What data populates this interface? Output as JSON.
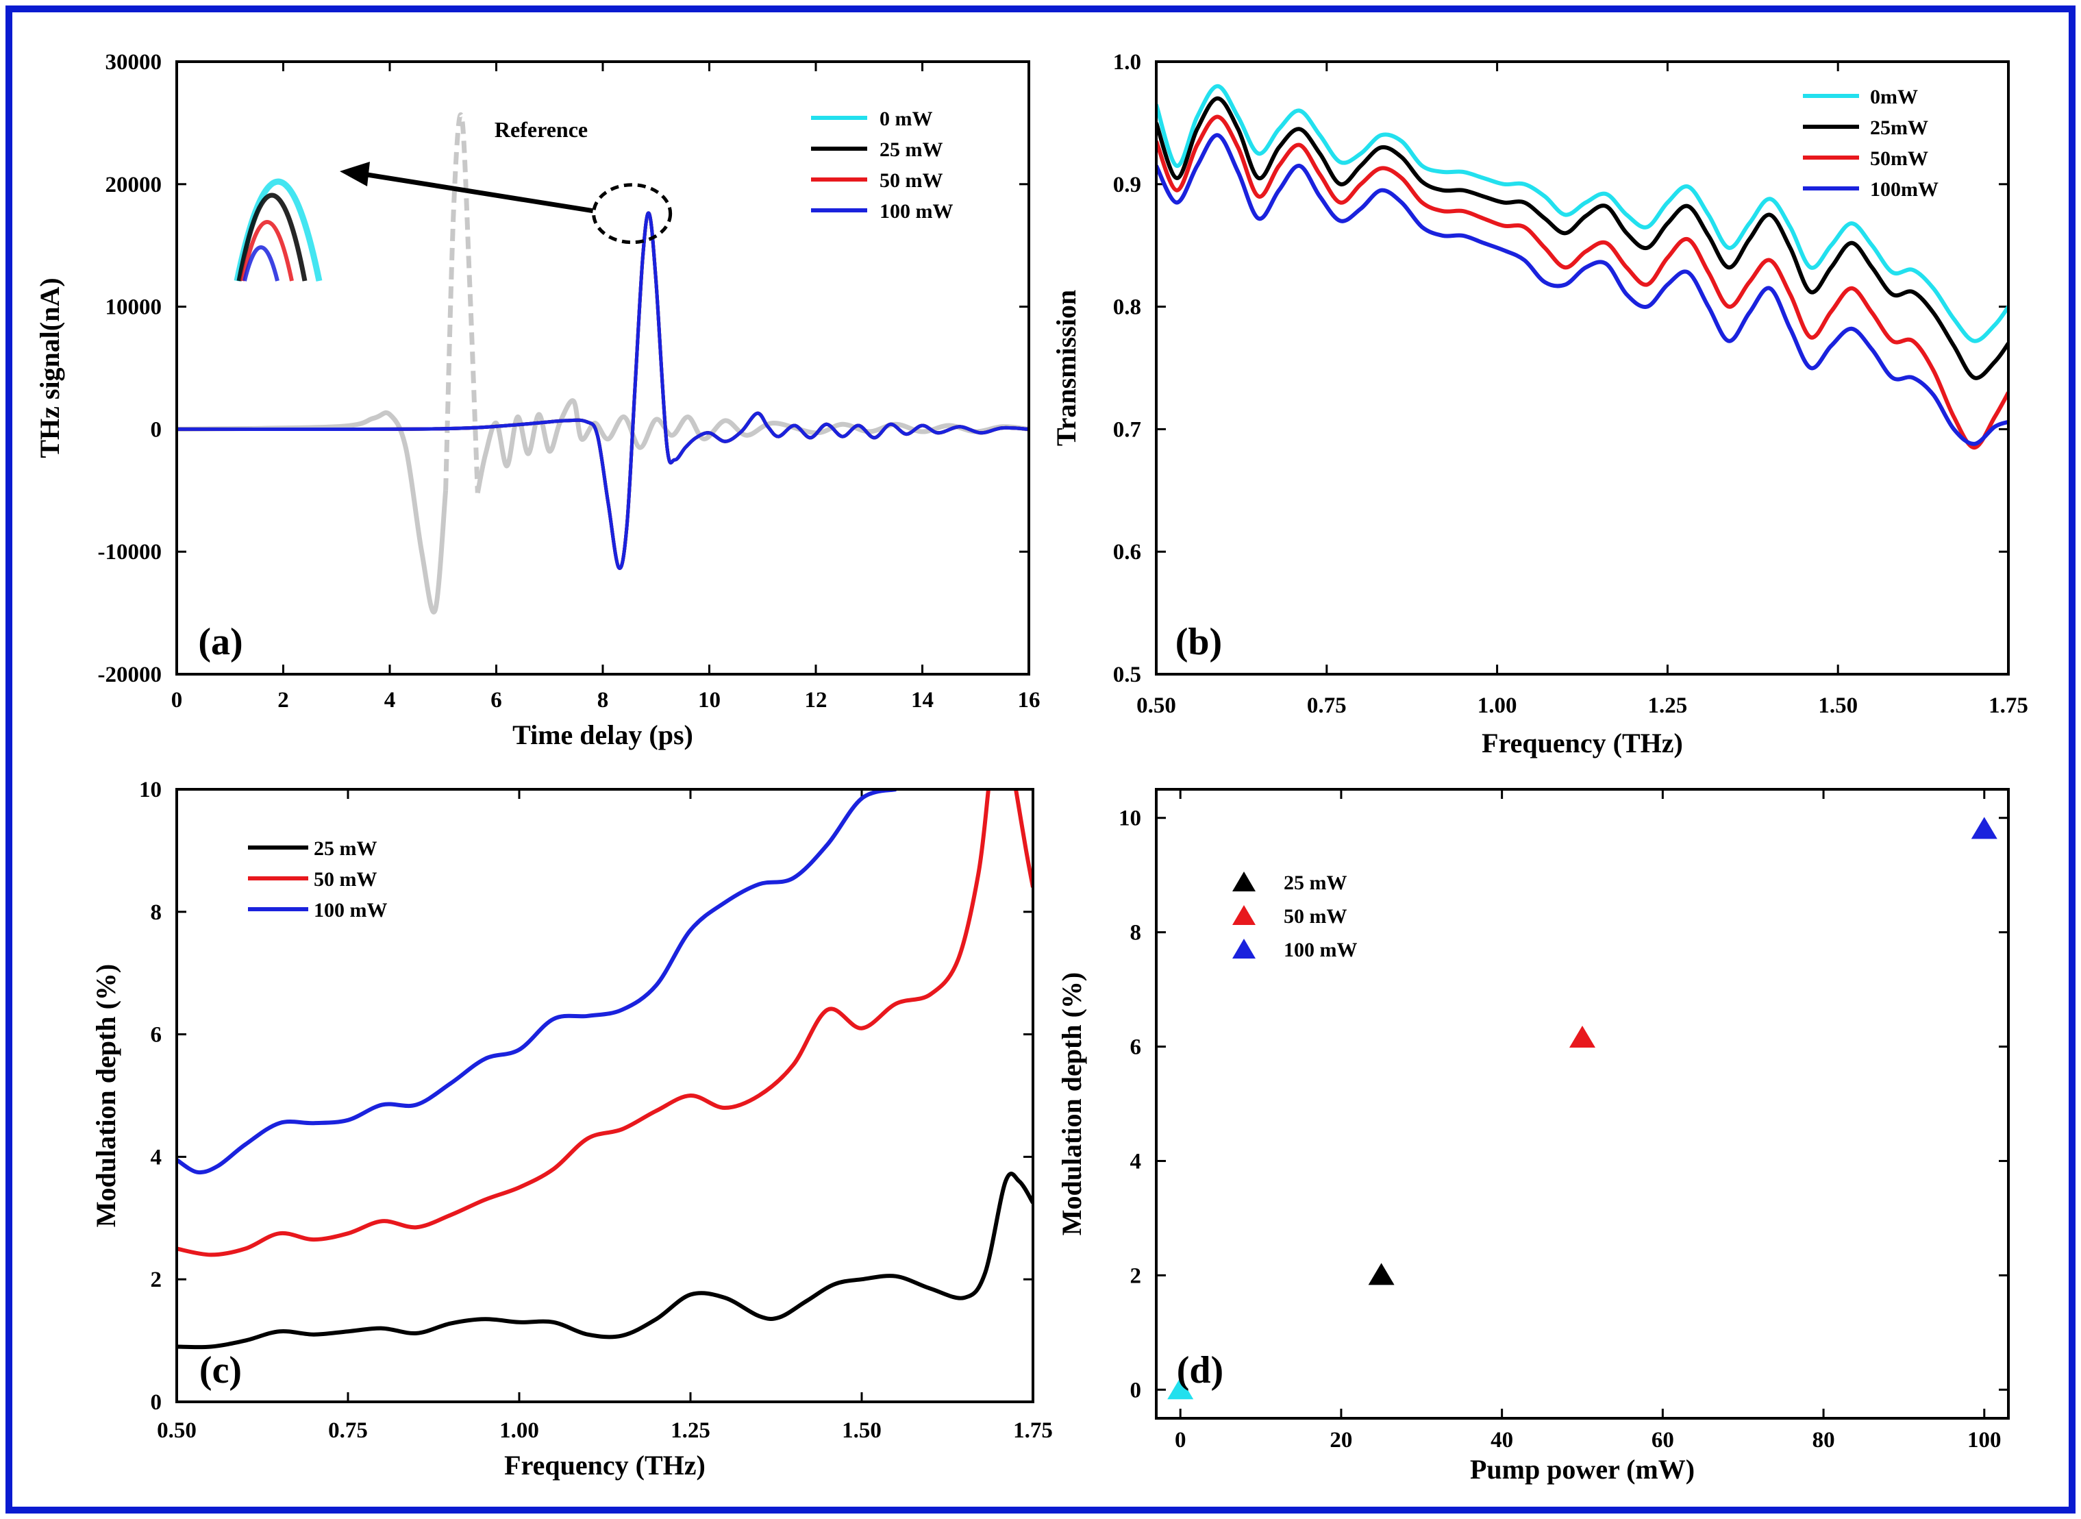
{
  "figure": {
    "border_color": "#0a1bd0"
  },
  "chart_data": [
    {
      "id": "a",
      "type": "line",
      "panel_label": "(a)",
      "xlabel": "Time delay (ps)",
      "ylabel": "THz signal(nA)",
      "xlim": [
        0,
        16
      ],
      "ylim": [
        -20000,
        30000
      ],
      "xticks": [
        0,
        2,
        4,
        6,
        8,
        10,
        12,
        14,
        16
      ],
      "yticks": [
        -20000,
        -10000,
        0,
        10000,
        20000,
        30000
      ],
      "legend": [
        "0 mW",
        "25 mW",
        "50 mW",
        "100 mW"
      ],
      "legend_colors": [
        "#22e0ee",
        "#000000",
        "#e8181d",
        "#1a22dd"
      ],
      "reference_label": "Reference",
      "reference_color": "#c8c8c8",
      "inset_zoom": {
        "description_colors": [
          "#22e0ee",
          "#000000",
          "#e8181d",
          "#1a22dd"
        ]
      },
      "reference_points": [
        [
          0,
          0
        ],
        [
          3.0,
          200
        ],
        [
          3.7,
          900
        ],
        [
          4.0,
          1200
        ],
        [
          4.3,
          -1500
        ],
        [
          4.6,
          -10000
        ],
        [
          4.85,
          -14800
        ],
        [
          5.05,
          -5000
        ],
        [
          5.2,
          18000
        ],
        [
          5.35,
          25500
        ],
        [
          5.5,
          12000
        ],
        [
          5.65,
          -5200
        ],
        [
          5.8,
          -2000
        ],
        [
          6.0,
          500
        ],
        [
          6.2,
          -3000
        ],
        [
          6.4,
          1000
        ],
        [
          6.6,
          -2000
        ],
        [
          6.8,
          1200
        ],
        [
          7.0,
          -1800
        ],
        [
          7.2,
          600
        ],
        [
          7.45,
          2300
        ],
        [
          7.6,
          -800
        ],
        [
          7.85,
          500
        ],
        [
          8.1,
          -800
        ],
        [
          8.4,
          1000
        ],
        [
          8.7,
          -1500
        ],
        [
          9.0,
          800
        ],
        [
          9.3,
          -500
        ],
        [
          9.6,
          1000
        ],
        [
          9.9,
          -800
        ],
        [
          10.3,
          700
        ],
        [
          10.7,
          -500
        ],
        [
          11.2,
          500
        ],
        [
          12.0,
          -300
        ],
        [
          12.5,
          400
        ],
        [
          13.0,
          -200
        ],
        [
          13.5,
          400
        ],
        [
          14.0,
          -200
        ],
        [
          14.5,
          300
        ],
        [
          15.0,
          -200
        ],
        [
          15.5,
          200
        ],
        [
          16.0,
          0
        ]
      ],
      "signal_points": [
        [
          0,
          0
        ],
        [
          4.0,
          0
        ],
        [
          5.5,
          100
        ],
        [
          6.5,
          400
        ],
        [
          7.3,
          700
        ],
        [
          7.7,
          600
        ],
        [
          7.9,
          -500
        ],
        [
          8.1,
          -6000
        ],
        [
          8.3,
          -11300
        ],
        [
          8.45,
          -8000
        ],
        [
          8.6,
          3000
        ],
        [
          8.75,
          14000
        ],
        [
          8.87,
          17600
        ],
        [
          9.0,
          12000
        ],
        [
          9.2,
          -1200
        ],
        [
          9.35,
          -2500
        ],
        [
          9.55,
          -1500
        ],
        [
          9.75,
          -700
        ],
        [
          10.0,
          -300
        ],
        [
          10.3,
          -1000
        ],
        [
          10.6,
          -200
        ],
        [
          10.9,
          1300
        ],
        [
          11.1,
          200
        ],
        [
          11.3,
          -600
        ],
        [
          11.6,
          300
        ],
        [
          11.9,
          -700
        ],
        [
          12.2,
          400
        ],
        [
          12.5,
          -600
        ],
        [
          12.8,
          300
        ],
        [
          13.1,
          -700
        ],
        [
          13.4,
          400
        ],
        [
          13.7,
          -400
        ],
        [
          14.0,
          300
        ],
        [
          14.3,
          -300
        ],
        [
          14.7,
          200
        ],
        [
          15.1,
          -300
        ],
        [
          15.5,
          100
        ],
        [
          16.0,
          0
        ]
      ]
    },
    {
      "id": "b",
      "type": "line",
      "panel_label": "(b)",
      "xlabel": "Frequency (THz)",
      "ylabel": "Transmission",
      "xlim": [
        0.5,
        1.75
      ],
      "ylim": [
        0.5,
        1.0
      ],
      "xticks": [
        0.5,
        0.75,
        1.0,
        1.25,
        1.5,
        1.75
      ],
      "xtick_labels": [
        "0.50",
        "0.75",
        "1.00",
        "1.25",
        "1.50",
        "1.75"
      ],
      "yticks": [
        0.5,
        0.6,
        0.7,
        0.8,
        0.9,
        1.0
      ],
      "ytick_labels": [
        "0.5",
        "0.6",
        "0.7",
        "0.8",
        "0.9",
        "1.0"
      ],
      "x": [
        0.5,
        0.53,
        0.56,
        0.59,
        0.62,
        0.65,
        0.68,
        0.71,
        0.74,
        0.77,
        0.8,
        0.83,
        0.86,
        0.89,
        0.92,
        0.95,
        0.98,
        1.01,
        1.04,
        1.07,
        1.1,
        1.13,
        1.16,
        1.19,
        1.22,
        1.25,
        1.28,
        1.31,
        1.34,
        1.37,
        1.4,
        1.43,
        1.46,
        1.49,
        1.52,
        1.55,
        1.58,
        1.61,
        1.64,
        1.67,
        1.7,
        1.73,
        1.75
      ],
      "series": [
        {
          "name": "0mW",
          "color": "#22e0ee",
          "values": [
            0.965,
            0.915,
            0.955,
            0.98,
            0.955,
            0.925,
            0.945,
            0.96,
            0.94,
            0.918,
            0.925,
            0.94,
            0.935,
            0.915,
            0.91,
            0.91,
            0.905,
            0.9,
            0.9,
            0.89,
            0.875,
            0.885,
            0.892,
            0.875,
            0.865,
            0.885,
            0.898,
            0.875,
            0.848,
            0.868,
            0.888,
            0.865,
            0.832,
            0.85,
            0.868,
            0.85,
            0.828,
            0.83,
            0.815,
            0.79,
            0.772,
            0.785,
            0.8
          ]
        },
        {
          "name": "25mW",
          "color": "#000000",
          "values": [
            0.95,
            0.905,
            0.945,
            0.97,
            0.945,
            0.905,
            0.93,
            0.945,
            0.925,
            0.9,
            0.915,
            0.93,
            0.922,
            0.902,
            0.895,
            0.895,
            0.89,
            0.885,
            0.885,
            0.872,
            0.86,
            0.874,
            0.882,
            0.86,
            0.848,
            0.868,
            0.882,
            0.858,
            0.832,
            0.855,
            0.875,
            0.848,
            0.812,
            0.832,
            0.852,
            0.832,
            0.81,
            0.812,
            0.795,
            0.768,
            0.742,
            0.755,
            0.77
          ]
        },
        {
          "name": "50mW",
          "color": "#e8181d",
          "values": [
            0.935,
            0.895,
            0.932,
            0.955,
            0.93,
            0.89,
            0.915,
            0.932,
            0.908,
            0.885,
            0.9,
            0.913,
            0.905,
            0.885,
            0.878,
            0.878,
            0.872,
            0.866,
            0.865,
            0.848,
            0.832,
            0.845,
            0.852,
            0.832,
            0.818,
            0.84,
            0.855,
            0.828,
            0.8,
            0.82,
            0.838,
            0.81,
            0.775,
            0.796,
            0.815,
            0.795,
            0.772,
            0.772,
            0.748,
            0.71,
            0.685,
            0.71,
            0.73
          ]
        },
        {
          "name": "100mW",
          "color": "#1a22dd",
          "values": [
            0.915,
            0.885,
            0.915,
            0.94,
            0.91,
            0.872,
            0.895,
            0.915,
            0.89,
            0.87,
            0.88,
            0.895,
            0.885,
            0.865,
            0.858,
            0.858,
            0.852,
            0.846,
            0.838,
            0.82,
            0.818,
            0.832,
            0.835,
            0.81,
            0.8,
            0.818,
            0.828,
            0.8,
            0.772,
            0.795,
            0.815,
            0.782,
            0.75,
            0.768,
            0.782,
            0.765,
            0.742,
            0.742,
            0.728,
            0.7,
            0.688,
            0.702,
            0.706
          ]
        }
      ]
    },
    {
      "id": "c",
      "type": "line",
      "panel_label": "(c)",
      "xlabel": "Frequency (THz)",
      "ylabel": "Modulation depth (%)",
      "xlim": [
        0.5,
        1.75
      ],
      "ylim": [
        0,
        10
      ],
      "xticks": [
        0.5,
        0.75,
        1.0,
        1.25,
        1.5,
        1.75
      ],
      "xtick_labels": [
        "0.50",
        "0.75",
        "1.00",
        "1.25",
        "1.50",
        "1.75"
      ],
      "yticks": [
        0,
        2,
        4,
        6,
        8,
        10
      ],
      "series": [
        {
          "name": "25 mW",
          "color": "#000000",
          "points": [
            [
              0.5,
              0.9
            ],
            [
              0.55,
              0.9
            ],
            [
              0.6,
              1.0
            ],
            [
              0.65,
              1.15
            ],
            [
              0.7,
              1.1
            ],
            [
              0.75,
              1.15
            ],
            [
              0.8,
              1.2
            ],
            [
              0.85,
              1.12
            ],
            [
              0.9,
              1.28
            ],
            [
              0.95,
              1.35
            ],
            [
              1.0,
              1.3
            ],
            [
              1.05,
              1.3
            ],
            [
              1.1,
              1.1
            ],
            [
              1.15,
              1.08
            ],
            [
              1.2,
              1.35
            ],
            [
              1.25,
              1.75
            ],
            [
              1.3,
              1.7
            ],
            [
              1.35,
              1.4
            ],
            [
              1.38,
              1.38
            ],
            [
              1.42,
              1.65
            ],
            [
              1.46,
              1.92
            ],
            [
              1.5,
              2.0
            ],
            [
              1.55,
              2.05
            ],
            [
              1.6,
              1.85
            ],
            [
              1.65,
              1.7
            ],
            [
              1.68,
              2.1
            ],
            [
              1.71,
              3.6
            ],
            [
              1.73,
              3.6
            ],
            [
              1.75,
              3.25
            ]
          ]
        },
        {
          "name": "50 mW",
          "color": "#e8181d",
          "points": [
            [
              0.5,
              2.5
            ],
            [
              0.55,
              2.4
            ],
            [
              0.6,
              2.5
            ],
            [
              0.65,
              2.75
            ],
            [
              0.7,
              2.65
            ],
            [
              0.75,
              2.75
            ],
            [
              0.8,
              2.95
            ],
            [
              0.85,
              2.85
            ],
            [
              0.9,
              3.05
            ],
            [
              0.95,
              3.3
            ],
            [
              1.0,
              3.5
            ],
            [
              1.05,
              3.8
            ],
            [
              1.1,
              4.3
            ],
            [
              1.15,
              4.45
            ],
            [
              1.2,
              4.75
            ],
            [
              1.25,
              5.0
            ],
            [
              1.3,
              4.8
            ],
            [
              1.35,
              5.0
            ],
            [
              1.4,
              5.5
            ],
            [
              1.45,
              6.4
            ],
            [
              1.5,
              6.1
            ],
            [
              1.55,
              6.5
            ],
            [
              1.6,
              6.65
            ],
            [
              1.64,
              7.2
            ],
            [
              1.67,
              8.6
            ],
            [
              1.685,
              10.0
            ]
          ],
          "points2": [
            [
              1.725,
              10.0
            ],
            [
              1.74,
              9.0
            ],
            [
              1.75,
              8.4
            ]
          ]
        },
        {
          "name": "100 mW",
          "color": "#1a22dd",
          "points": [
            [
              0.5,
              3.95
            ],
            [
              0.53,
              3.75
            ],
            [
              0.56,
              3.85
            ],
            [
              0.6,
              4.2
            ],
            [
              0.65,
              4.55
            ],
            [
              0.7,
              4.55
            ],
            [
              0.75,
              4.6
            ],
            [
              0.8,
              4.85
            ],
            [
              0.85,
              4.85
            ],
            [
              0.9,
              5.2
            ],
            [
              0.95,
              5.6
            ],
            [
              1.0,
              5.75
            ],
            [
              1.05,
              6.25
            ],
            [
              1.1,
              6.3
            ],
            [
              1.15,
              6.4
            ],
            [
              1.2,
              6.8
            ],
            [
              1.25,
              7.7
            ],
            [
              1.3,
              8.15
            ],
            [
              1.35,
              8.45
            ],
            [
              1.4,
              8.55
            ],
            [
              1.45,
              9.1
            ],
            [
              1.5,
              9.85
            ],
            [
              1.55,
              10.0
            ]
          ]
        }
      ],
      "legend": [
        "25 mW",
        "50 mW",
        "100 mW"
      ],
      "legend_colors": [
        "#000000",
        "#e8181d",
        "#1a22dd"
      ]
    },
    {
      "id": "d",
      "type": "scatter",
      "panel_label": "(d)",
      "xlabel": "Pump power (mW)",
      "ylabel": "Modulation depth (%)",
      "xlim": [
        -3,
        103
      ],
      "ylim": [
        -0.5,
        10.5
      ],
      "xticks": [
        0,
        20,
        40,
        60,
        80,
        100
      ],
      "yticks": [
        0,
        2,
        4,
        6,
        8,
        10
      ],
      "points": [
        {
          "name": "0 mW",
          "x": 0,
          "y": 0,
          "color": "#22e0ee"
        },
        {
          "name": "25 mW",
          "x": 25,
          "y": 2.0,
          "color": "#000000"
        },
        {
          "name": "50 mW",
          "x": 50,
          "y": 6.15,
          "color": "#e8181d"
        },
        {
          "name": "100 mW",
          "x": 100,
          "y": 9.8,
          "color": "#1a22dd"
        }
      ],
      "legend": [
        "25 mW",
        "50 mW",
        "100 mW"
      ],
      "legend_colors": [
        "#000000",
        "#e8181d",
        "#1a22dd"
      ]
    }
  ]
}
